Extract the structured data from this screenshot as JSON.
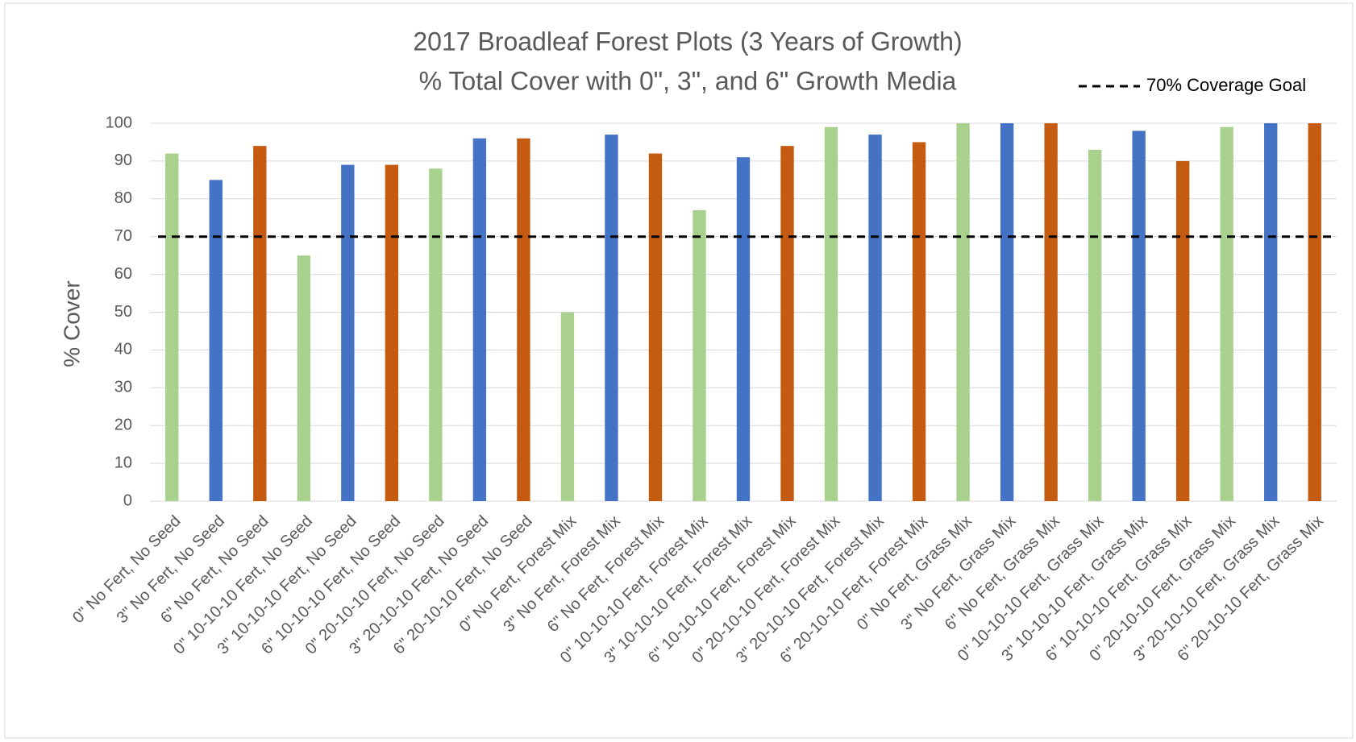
{
  "chart_data": {
    "type": "bar",
    "title": [
      "2017 Broadleaf Forest Plots (3 Years of Growth)",
      "% Total Cover with 0\", 3\", and 6\" Growth Media"
    ],
    "y_label": "% Cover",
    "categories": [
      "0\" No Fert, No Seed",
      "3\" No Fert, No Seed",
      "6\" No Fert, No Seed",
      "0\" 10-10-10 Fert, No Seed",
      "3\" 10-10-10 Fert, No Seed",
      "6\" 10-10-10 Fert, No Seed",
      "0\" 20-10-10 Fert, No Seed",
      "3\" 20-10-10 Fert, No Seed",
      "6\" 20-10-10 Fert, No Seed",
      "0\" No Fert, Forest Mix",
      "3\" No Fert, Forest Mix",
      "6\" No Fert, Forest Mix",
      "0\" 10-10-10 Fert, Forest Mix",
      "3\" 10-10-10 Fert, Forest Mix",
      "6\" 10-10-10 Fert, Forest Mix",
      "0\" 20-10-10 Fert, Forest Mix",
      "3\" 20-10-10 Fert, Forest Mix",
      "6\" 20-10-10 Fert, Forest Mix",
      "0\" No Fert, Grass Mix",
      "3\" No Fert, Grass Mix",
      "6\" No Fert, Grass Mix",
      "0\" 10-10-10 Fert, Grass Mix",
      "3\" 10-10-10 Fert, Grass Mix",
      "6\" 10-10-10 Fert, Grass Mix",
      "0\" 20-10-10 Fert, Grass Mix",
      "3\" 20-10-10 Fert, Grass Mix",
      "6\" 20-10-10 Fert, Grass Mix"
    ],
    "values": [
      92,
      85,
      94,
      65,
      89,
      89,
      88,
      96,
      96,
      50,
      97,
      92,
      77,
      91,
      94,
      99,
      97,
      95,
      100,
      100,
      100,
      93,
      98,
      90,
      99,
      100,
      100
    ],
    "colors": [
      "#a9d18e",
      "#4472c4",
      "#c55a11",
      "#a9d18e",
      "#4472c4",
      "#c55a11",
      "#a9d18e",
      "#4472c4",
      "#c55a11",
      "#a9d18e",
      "#4472c4",
      "#c55a11",
      "#a9d18e",
      "#4472c4",
      "#c55a11",
      "#a9d18e",
      "#4472c4",
      "#c55a11",
      "#a9d18e",
      "#4472c4",
      "#c55a11",
      "#a9d18e",
      "#4472c4",
      "#c55a11",
      "#a9d18e",
      "#4472c4",
      "#c55a11"
    ],
    "reference_line": {
      "value": 70,
      "label": "70% Coverage Goal",
      "color": "#000000"
    },
    "ylim": [
      0,
      100
    ],
    "yticks": [
      0,
      10,
      20,
      30,
      40,
      50,
      60,
      70,
      80,
      90,
      100
    ],
    "grid": true,
    "legend": "top-right"
  }
}
